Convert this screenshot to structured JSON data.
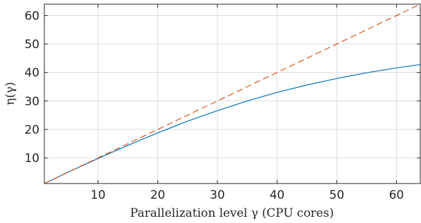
{
  "chart_data": {
    "type": "line",
    "xlabel": "Parallelization level γ (CPU cores)",
    "ylabel": "η(γ)",
    "xlim": [
      1,
      64
    ],
    "ylim": [
      1,
      64
    ],
    "xticks": [
      10,
      20,
      30,
      40,
      50,
      60
    ],
    "yticks": [
      10,
      20,
      30,
      40,
      50,
      60
    ],
    "grid": true,
    "series": [
      {
        "style": "solid",
        "color": "#0072bd",
        "x": [
          1,
          5,
          10,
          15,
          20,
          25,
          30,
          35,
          40,
          45,
          50,
          55,
          60,
          64
        ],
        "y": [
          1,
          5,
          9.8,
          14.4,
          18.8,
          22.9,
          26.6,
          30.0,
          33.0,
          35.6,
          37.9,
          39.9,
          41.6,
          42.8
        ]
      },
      {
        "style": "dashed",
        "color": "#d95319",
        "x": [
          1,
          64
        ],
        "y": [
          1,
          64
        ]
      }
    ]
  }
}
